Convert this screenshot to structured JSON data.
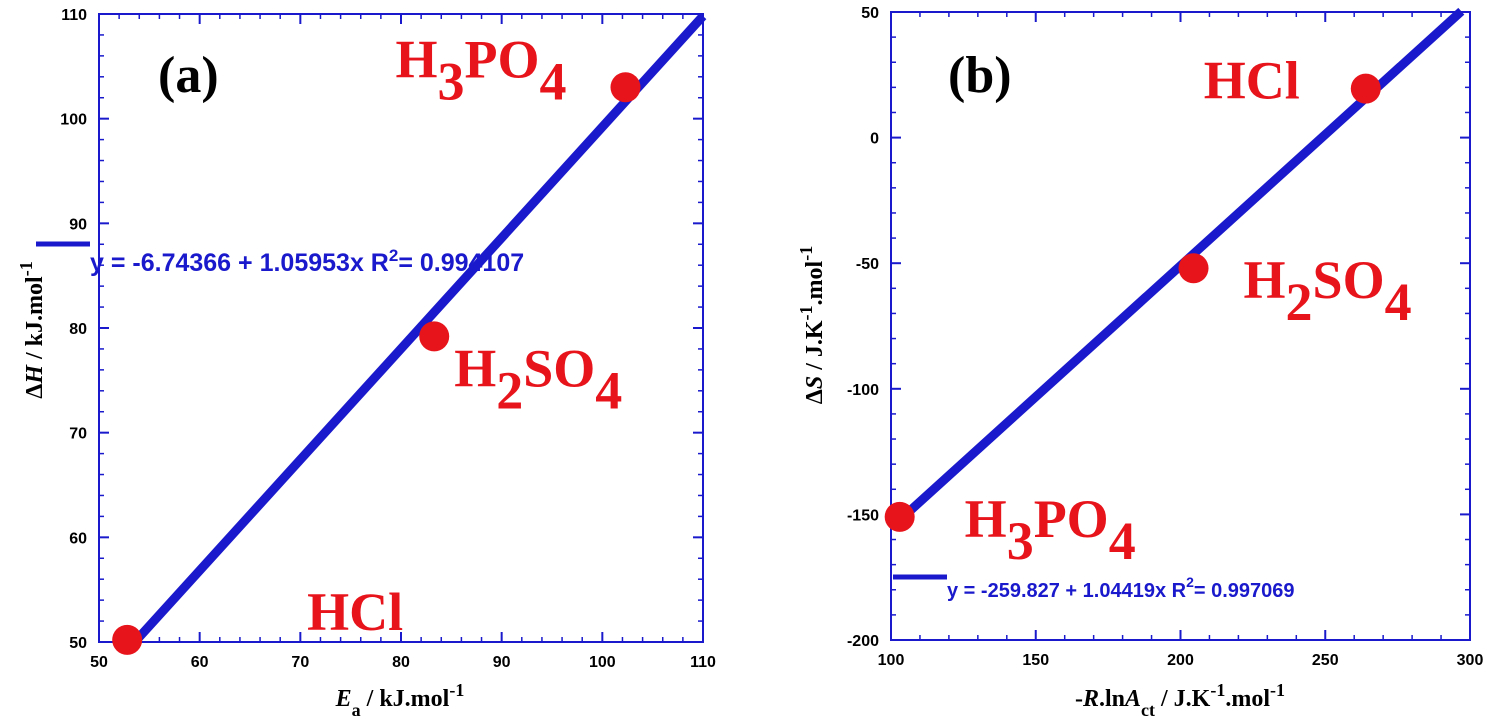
{
  "chart_data": [
    {
      "type": "scatter",
      "panel_label": "(a)",
      "xlabel": {
        "base": "E",
        "sub": "a",
        "units": " / kJ.mol",
        "sup": "-1"
      },
      "ylabel": {
        "delta": "Δ",
        "base": "H",
        "units": "  / kJ.mol",
        "sup": "-1"
      },
      "xlim": [
        50,
        110
      ],
      "ylim": [
        50,
        110
      ],
      "xticks": [
        50,
        60,
        70,
        80,
        90,
        100,
        110
      ],
      "yticks": [
        50,
        60,
        70,
        80,
        90,
        100,
        110
      ],
      "grid": false,
      "points": [
        {
          "x": 52.8,
          "y": 50.2,
          "label": {
            "parts": [
              {
                "t": "HCl"
              }
            ]
          }
        },
        {
          "x": 83.3,
          "y": 79.2,
          "label": {
            "parts": [
              {
                "t": "H"
              },
              {
                "t": "2",
                "sub": true
              },
              {
                "t": "SO"
              },
              {
                "t": "4",
                "sub": true
              }
            ]
          }
        },
        {
          "x": 102.3,
          "y": 103.0,
          "label": {
            "parts": [
              {
                "t": "H"
              },
              {
                "t": "3",
                "sub": true
              },
              {
                "t": "PO"
              },
              {
                "t": "4",
                "sub": true
              }
            ]
          }
        }
      ],
      "fit": {
        "intercept": -6.74366,
        "slope": 1.05953,
        "x_range": [
          52.8,
          110
        ]
      },
      "equation": {
        "text": "y = -6.74366 + 1.05953x   R",
        "r2_sup": "2",
        "r2_text": "= 0.994107"
      }
    },
    {
      "type": "scatter",
      "panel_label": "(b)",
      "xlabel": {
        "prefix": "-",
        "base": "R",
        "mid": ".ln",
        "base2": "A",
        "sub": "ct",
        "units": " / J.K",
        "sup": "-1",
        "units2": ".mol",
        "sup2": "-1"
      },
      "ylabel": {
        "delta": "Δ",
        "base": "S",
        "units": "  / J.K",
        "sup": "-1",
        "units2": ".mol",
        "sup2": "-1"
      },
      "xlim": [
        100,
        300
      ],
      "ylim": [
        -200,
        50
      ],
      "xticks": [
        100,
        150,
        200,
        250,
        300
      ],
      "yticks": [
        -200,
        -150,
        -100,
        -50,
        0,
        50
      ],
      "grid": false,
      "points": [
        {
          "x": 103,
          "y": -151,
          "label": {
            "parts": [
              {
                "t": "H"
              },
              {
                "t": "3",
                "sub": true
              },
              {
                "t": "PO"
              },
              {
                "t": "4",
                "sub": true
              }
            ]
          }
        },
        {
          "x": 204.5,
          "y": -52,
          "label": {
            "parts": [
              {
                "t": "H"
              },
              {
                "t": "2",
                "sub": true
              },
              {
                "t": "SO"
              },
              {
                "t": "4",
                "sub": true
              }
            ]
          }
        },
        {
          "x": 264,
          "y": 19.5,
          "label": {
            "parts": [
              {
                "t": "HCl"
              }
            ]
          }
        }
      ],
      "fit": {
        "intercept": -259.827,
        "slope": 1.04419,
        "x_range": [
          103,
          297
        ]
      },
      "equation": {
        "text": "y = -259.827 + 1.04419x   R",
        "r2_sup": "2",
        "r2_text": "= 0.997069"
      }
    }
  ],
  "colors": {
    "axis": "#1a1acc",
    "fit_line": "#1a1acc",
    "points": "#e8141c",
    "annotations": "#e8141c"
  }
}
